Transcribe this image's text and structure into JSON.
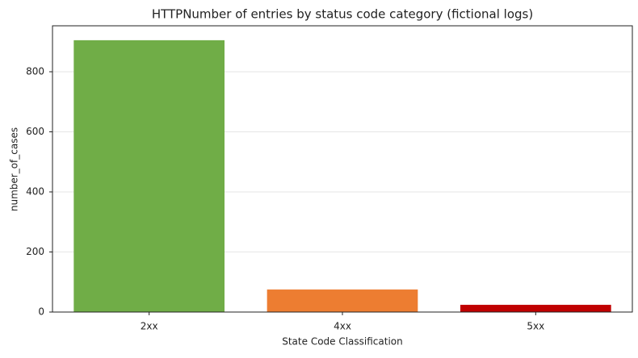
{
  "chart_data": {
    "type": "bar",
    "title": "HTTPNumber of entries by status code category (fictional logs)",
    "x_label": "State Code Classification",
    "y_label": "number_of_cases",
    "categories": [
      "2xx",
      "4xx",
      "5xx"
    ],
    "values": [
      905,
      75,
      24
    ],
    "colors": [
      "#70ad47",
      "#ed7d31",
      "#c00000"
    ],
    "ylim": [
      0,
      953
    ],
    "yticks": [
      0,
      200,
      400,
      600,
      800
    ],
    "grid": true
  }
}
